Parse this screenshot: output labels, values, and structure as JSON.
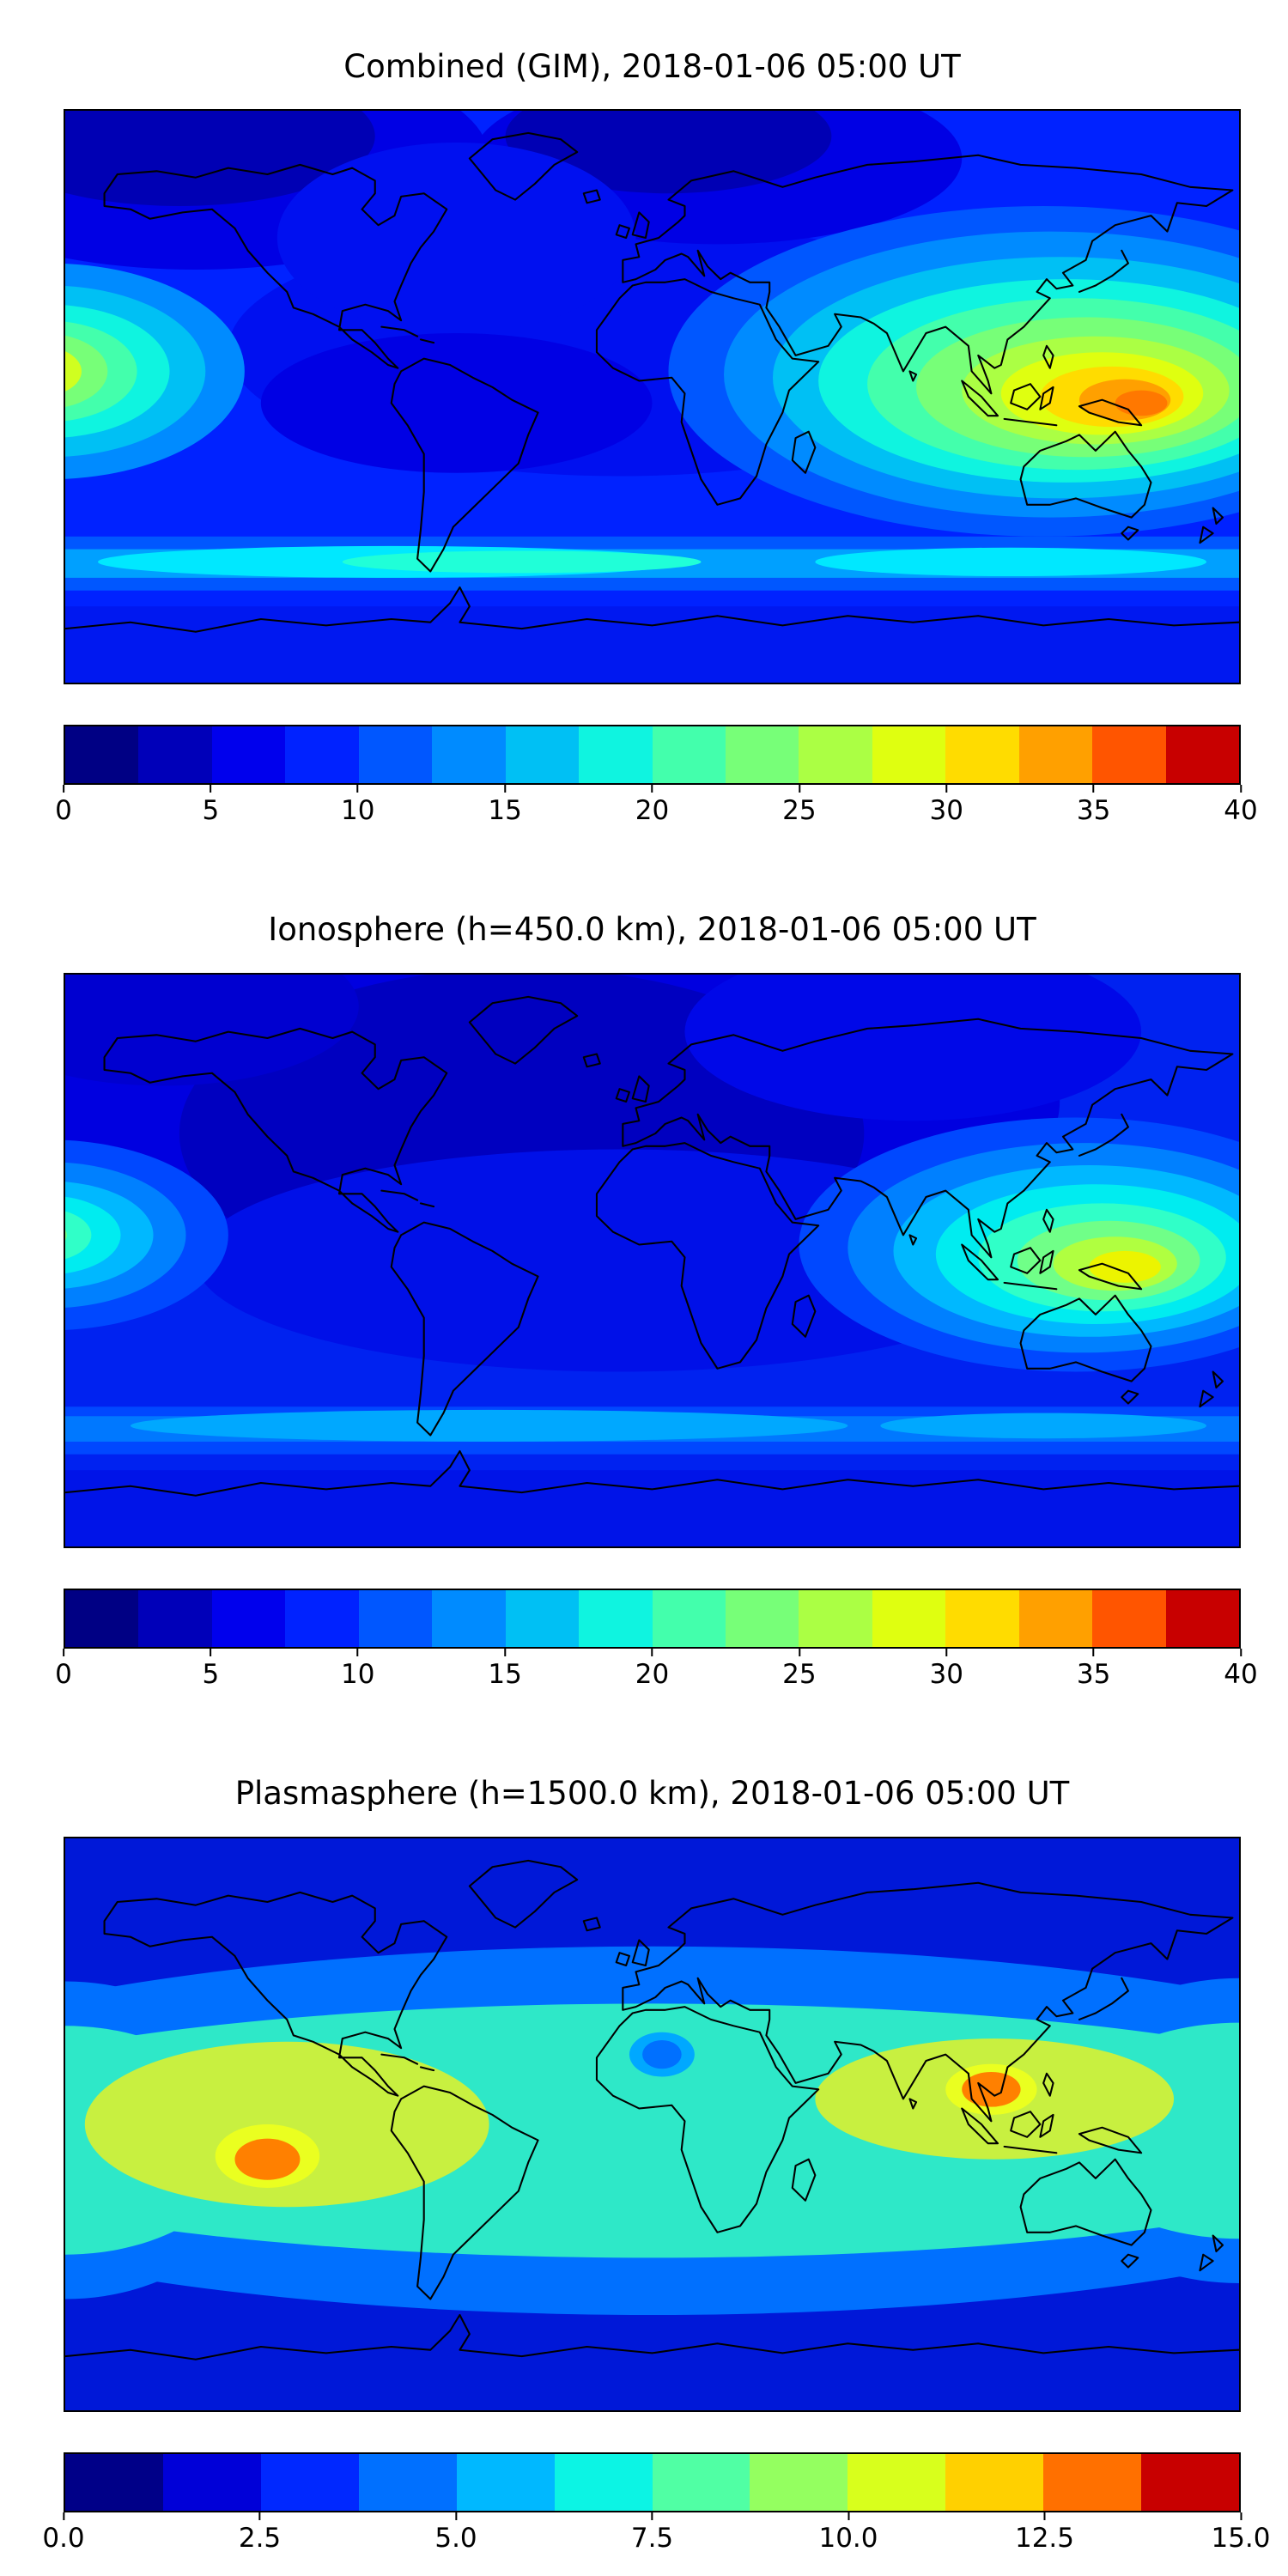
{
  "figure": {
    "background": "#ffffff",
    "panels": [
      {
        "id": "combined-gim",
        "title": "Combined (GIM), 2018-01-06 05:00 UT",
        "colorbar": {
          "orientation": "horizontal",
          "min": 0,
          "max": 40,
          "ticks": [
            "0",
            "5",
            "10",
            "15",
            "20",
            "25",
            "30",
            "35",
            "40"
          ],
          "colors": [
            "#000084",
            "#0000b9",
            "#0000ed",
            "#0022ff",
            "#0057ff",
            "#008bff",
            "#00c0f4",
            "#0ff4e0",
            "#43ffac",
            "#77ff78",
            "#abff44",
            "#dfff10",
            "#ffdc00",
            "#ffa000",
            "#ff5500",
            "#c80000"
          ]
        }
      },
      {
        "id": "ionosphere",
        "title": "Ionosphere (h=450.0 km), 2018-01-06 05:00 UT",
        "colorbar": {
          "orientation": "horizontal",
          "min": 0,
          "max": 40,
          "ticks": [
            "0",
            "5",
            "10",
            "15",
            "20",
            "25",
            "30",
            "35",
            "40"
          ],
          "colors": [
            "#000084",
            "#0000b9",
            "#0000ed",
            "#0022ff",
            "#0057ff",
            "#008bff",
            "#00c0f4",
            "#0ff4e0",
            "#43ffac",
            "#77ff78",
            "#abff44",
            "#dfff10",
            "#ffdc00",
            "#ffa000",
            "#ff5500",
            "#c80000"
          ]
        }
      },
      {
        "id": "plasmasphere",
        "title": "Plasmasphere (h=1500.0 km), 2018-01-06 05:00 UT",
        "colorbar": {
          "orientation": "horizontal",
          "min": 0,
          "max": 15,
          "ticks": [
            "0.0",
            "2.5",
            "5.0",
            "7.5",
            "10.0",
            "12.5",
            "15.0"
          ],
          "colors": [
            "#000088",
            "#0000d8",
            "#0028ff",
            "#0070ff",
            "#00b8ff",
            "#0cf4e4",
            "#50ffa4",
            "#94ff60",
            "#d8ff1c",
            "#ffd000",
            "#ff7000",
            "#c80000"
          ]
        }
      }
    ]
  },
  "chart_data": [
    {
      "type": "heatmap",
      "subtype": "filled-contour world map",
      "title": "Combined (GIM), 2018-01-06 05:00 UT",
      "projection": "equirectangular, lon -180..180, lat 90..-90, coastlines overlaid",
      "colormap": "jet (discrete contour levels)",
      "value_range": [
        0,
        40
      ],
      "colorbar_ticks": [
        0,
        5,
        10,
        15,
        20,
        25,
        30,
        35,
        40
      ],
      "legend_position": "horizontal colorbar below map",
      "grid": false,
      "features": [
        {
          "label": "global ocean/land background",
          "approx_value": 8
        },
        {
          "label": "high northern latitude minima (Arctic, Europe/Russia)",
          "approx_value": 3
        },
        {
          "label": "dark minimum over central Atlantic / west of South America",
          "approx_value": 5
        },
        {
          "label": "equatorial maximum at left map edge (~180W, ~10S)",
          "approx_value": 26
        },
        {
          "label": "broad maximum over Southeast Asia / Indonesia / N. Australia (~130E, ~15S)",
          "approx_value": 34
        },
        {
          "label": "southern mid-latitude enhanced band (~55S)",
          "approx_value": 17
        }
      ]
    },
    {
      "type": "heatmap",
      "subtype": "filled-contour world map",
      "title": "Ionosphere (h=450.0 km), 2018-01-06 05:00 UT",
      "projection": "equirectangular, lon -180..180, lat 90..-90, coastlines overlaid",
      "colormap": "jet (discrete contour levels)",
      "value_range": [
        0,
        40
      ],
      "colorbar_ticks": [
        0,
        5,
        10,
        15,
        20,
        25,
        30,
        35,
        40
      ],
      "legend_position": "horizontal colorbar below map",
      "grid": false,
      "features": [
        {
          "label": "global background",
          "approx_value": 6
        },
        {
          "label": "large dark minimum over N. America / Atlantic / Europe / Africa",
          "approx_value": 3
        },
        {
          "label": "equatorial maximum at left map edge (~180W, ~10S)",
          "approx_value": 22
        },
        {
          "label": "maximum over Indonesia / N. Australia (~135E, ~15S)",
          "approx_value": 28
        },
        {
          "label": "southern mid-latitude band (~55S)",
          "approx_value": 13
        }
      ]
    },
    {
      "type": "heatmap",
      "subtype": "filled-contour world map",
      "title": "Plasmasphere (h=1500.0 km), 2018-01-06 05:00 UT",
      "projection": "equirectangular, lon -180..180, lat 90..-90, coastlines overlaid",
      "colormap": "jet (discrete contour levels)",
      "value_range": [
        0,
        15
      ],
      "colorbar_ticks": [
        0.0,
        2.5,
        5.0,
        7.5,
        10.0,
        12.5,
        15.0
      ],
      "legend_position": "horizontal colorbar below map",
      "grid": false,
      "features": [
        {
          "label": "polar caps (top and bottom of map)",
          "approx_value": 1.5
        },
        {
          "label": "mid-latitude transition bands",
          "approx_value": 4
        },
        {
          "label": "broad equatorial teal band spanning all longitudes",
          "approx_value": 6.5
        },
        {
          "label": "yellow-green enhancement over east Pacific (left, ~160W..60W)",
          "approx_value": 10
        },
        {
          "label": "yellow-green enhancement over S/SE Asia (right, ~50E..155E)",
          "approx_value": 10
        },
        {
          "label": "orange peak in east Pacific (~120W, ~10S)",
          "approx_value": 13
        },
        {
          "label": "orange peak over Southeast Asia (~105E, ~10N)",
          "approx_value": 13
        },
        {
          "label": "isolated low (blue dot) over Sahara (~5E, ~22N)",
          "approx_value": 4
        }
      ]
    }
  ]
}
